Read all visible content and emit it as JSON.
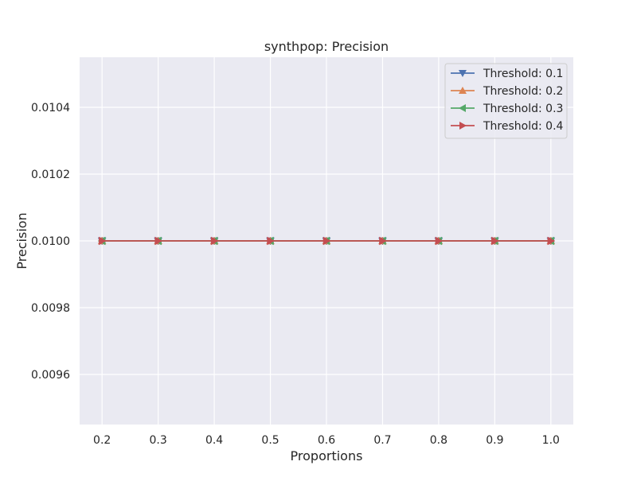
{
  "chart_data": {
    "type": "line",
    "title": "synthpop: Precision",
    "xlabel": "Proportions",
    "ylabel": "Precision",
    "x": [
      0.2,
      0.3,
      0.4,
      0.5,
      0.6,
      0.7,
      0.8,
      0.9,
      1.0
    ],
    "x_ticks": [
      "0.2",
      "0.3",
      "0.4",
      "0.5",
      "0.6",
      "0.7",
      "0.8",
      "0.9",
      "1.0"
    ],
    "y_ticks": [
      "0.0096",
      "0.0098",
      "0.0100",
      "0.0102",
      "0.0104"
    ],
    "y_tick_values": [
      0.0096,
      0.0098,
      0.01,
      0.0102,
      0.0104
    ],
    "xlim": [
      0.16,
      1.04
    ],
    "ylim": [
      0.00945,
      0.01055
    ],
    "grid": true,
    "legend_position": "top-right",
    "series": [
      {
        "name": "Threshold: 0.1",
        "marker": "triangle-down",
        "color": "#4c72b0",
        "values": [
          0.01,
          0.01,
          0.01,
          0.01,
          0.01,
          0.01,
          0.01,
          0.01,
          0.01
        ]
      },
      {
        "name": "Threshold: 0.2",
        "marker": "triangle-up",
        "color": "#dd8452",
        "values": [
          0.01,
          0.01,
          0.01,
          0.01,
          0.01,
          0.01,
          0.01,
          0.01,
          0.01
        ]
      },
      {
        "name": "Threshold: 0.3",
        "marker": "triangle-left",
        "color": "#55a868",
        "values": [
          0.01,
          0.01,
          0.01,
          0.01,
          0.01,
          0.01,
          0.01,
          0.01,
          0.01
        ]
      },
      {
        "name": "Threshold: 0.4",
        "marker": "triangle-right",
        "color": "#c44e52",
        "values": [
          0.01,
          0.01,
          0.01,
          0.01,
          0.01,
          0.01,
          0.01,
          0.01,
          0.01
        ]
      }
    ],
    "colors": {
      "plot_background": "#eaeaf2",
      "grid": "#ffffff",
      "text": "#262626"
    }
  }
}
